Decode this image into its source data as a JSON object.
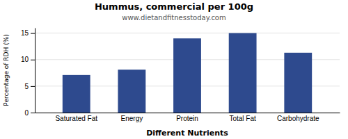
{
  "chart_data": {
    "type": "bar",
    "title": "Hummus, commercial per 100g",
    "subtitle": "www.dietandfitnesstoday.com",
    "xlabel": "Different Nutrients",
    "ylabel": "Percentage of RDH (%)",
    "categories": [
      "Saturated Fat",
      "Energy",
      "Protein",
      "Total Fat",
      "Carbohydrate"
    ],
    "values": [
      7.1,
      8.1,
      14.0,
      15.0,
      11.3
    ],
    "color": "#2e4a8e",
    "ylim": [
      0,
      16
    ],
    "yticks": [
      0,
      5,
      10,
      15
    ],
    "grid": true
  }
}
